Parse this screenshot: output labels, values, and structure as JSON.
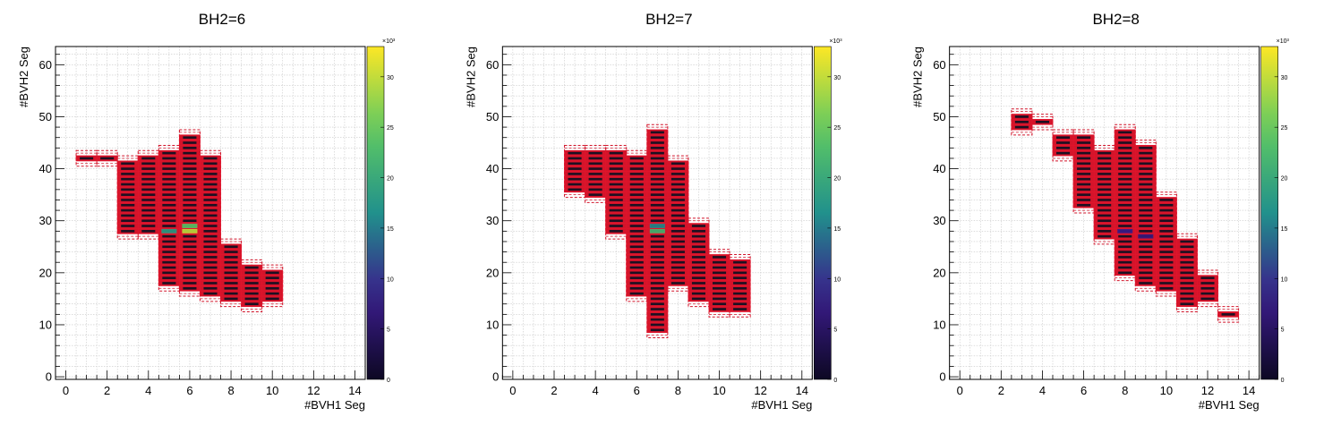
{
  "chart_data": [
    {
      "type": "heatmap",
      "title": "BH2=6",
      "xlabel": "#BVH1 Seg",
      "ylabel": "#BVH2 Seg",
      "xlim": [
        -0.5,
        14.5
      ],
      "ylim": [
        -0.5,
        63.5
      ],
      "xticks": [
        0,
        2,
        4,
        6,
        8,
        10,
        12,
        14
      ],
      "yticks": [
        0,
        10,
        20,
        30,
        40,
        50,
        60
      ],
      "grid": true,
      "colorbar": {
        "min": 0,
        "max": 33,
        "ticks": [
          0,
          5,
          10,
          15,
          20,
          25,
          30
        ],
        "exponent": "×10³"
      },
      "columns": [
        {
          "x": 1,
          "ylo": 42,
          "yhi": 42
        },
        {
          "x": 2,
          "ylo": 42,
          "yhi": 42
        },
        {
          "x": 3,
          "ylo": 28,
          "yhi": 41
        },
        {
          "x": 4,
          "ylo": 28,
          "yhi": 42
        },
        {
          "x": 5,
          "ylo": 18,
          "yhi": 43
        },
        {
          "x": 6,
          "ylo": 17,
          "yhi": 46
        },
        {
          "x": 7,
          "ylo": 16,
          "yhi": 42
        },
        {
          "x": 8,
          "ylo": 15,
          "yhi": 25
        },
        {
          "x": 9,
          "ylo": 14,
          "yhi": 21
        },
        {
          "x": 10,
          "ylo": 15,
          "yhi": 20
        }
      ],
      "hotspots": [
        {
          "x": 5,
          "y": 28,
          "v": 18
        },
        {
          "x": 6,
          "y": 28,
          "v": 30
        },
        {
          "x": 6,
          "y": 29,
          "v": 24
        }
      ]
    },
    {
      "type": "heatmap",
      "title": "BH2=7",
      "xlabel": "#BVH1 Seg",
      "ylabel": "#BVH2 Seg",
      "xlim": [
        -0.5,
        14.5
      ],
      "ylim": [
        -0.5,
        63.5
      ],
      "xticks": [
        0,
        2,
        4,
        6,
        8,
        10,
        12,
        14
      ],
      "yticks": [
        0,
        10,
        20,
        30,
        40,
        50,
        60
      ],
      "grid": true,
      "colorbar": {
        "min": 0,
        "max": 33,
        "ticks": [
          0,
          5,
          10,
          15,
          20,
          25,
          30
        ],
        "exponent": "×10³"
      },
      "columns": [
        {
          "x": 3,
          "ylo": 36,
          "yhi": 43
        },
        {
          "x": 4,
          "ylo": 35,
          "yhi": 43
        },
        {
          "x": 5,
          "ylo": 28,
          "yhi": 43
        },
        {
          "x": 6,
          "ylo": 16,
          "yhi": 42
        },
        {
          "x": 7,
          "ylo": 9,
          "yhi": 47
        },
        {
          "x": 8,
          "ylo": 18,
          "yhi": 41
        },
        {
          "x": 9,
          "ylo": 15,
          "yhi": 29
        },
        {
          "x": 10,
          "ylo": 13,
          "yhi": 23
        },
        {
          "x": 11,
          "ylo": 13,
          "yhi": 22
        }
      ],
      "hotspots": [
        {
          "x": 7,
          "y": 28,
          "v": 22
        },
        {
          "x": 7,
          "y": 29,
          "v": 16
        }
      ]
    },
    {
      "type": "heatmap",
      "title": "BH2=8",
      "xlabel": "#BVH1 Seg",
      "ylabel": "#BVH2 Seg",
      "xlim": [
        -0.5,
        14.5
      ],
      "ylim": [
        -0.5,
        63.5
      ],
      "xticks": [
        0,
        2,
        4,
        6,
        8,
        10,
        12,
        14
      ],
      "yticks": [
        0,
        10,
        20,
        30,
        40,
        50,
        60
      ],
      "grid": true,
      "colorbar": {
        "min": 0,
        "max": 33,
        "ticks": [
          0,
          5,
          10,
          15,
          20,
          25,
          30
        ],
        "exponent": "×10³"
      },
      "columns": [
        {
          "x": 3,
          "ylo": 48,
          "yhi": 50
        },
        {
          "x": 4,
          "ylo": 49,
          "yhi": 49
        },
        {
          "x": 5,
          "ylo": 43,
          "yhi": 46
        },
        {
          "x": 6,
          "ylo": 33,
          "yhi": 46
        },
        {
          "x": 7,
          "ylo": 27,
          "yhi": 43
        },
        {
          "x": 8,
          "ylo": 20,
          "yhi": 47
        },
        {
          "x": 9,
          "ylo": 18,
          "yhi": 44
        },
        {
          "x": 10,
          "ylo": 17,
          "yhi": 34
        },
        {
          "x": 11,
          "ylo": 14,
          "yhi": 26
        },
        {
          "x": 12,
          "ylo": 15,
          "yhi": 19
        },
        {
          "x": 13,
          "ylo": 12,
          "yhi": 12
        }
      ],
      "hotspots": [
        {
          "x": 8,
          "y": 28,
          "v": 8
        },
        {
          "x": 9,
          "y": 27,
          "v": 7
        }
      ]
    }
  ]
}
